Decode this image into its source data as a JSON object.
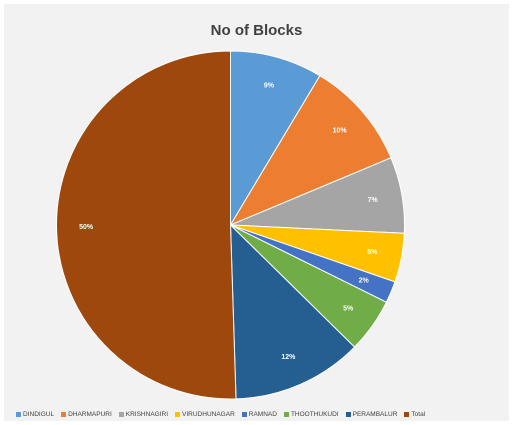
{
  "chart_data": {
    "type": "pie",
    "title": "No of Blocks",
    "categories": [
      "DINDIGUL",
      "DHARMAPURI",
      "KRISHNAGIRI",
      "VIRUDHUNAGAR",
      "RAMNAD",
      "THOOTHUKUDI",
      "PERAMBALUR",
      "Total"
    ],
    "values": [
      8.5,
      10,
      7,
      4.5,
      2,
      5,
      12,
      50
    ],
    "data_labels": [
      "9%",
      "10%",
      "7%",
      "5%",
      "2%",
      "5%",
      "12%",
      "50%"
    ],
    "colors": [
      "#5b9bd5",
      "#ed7d31",
      "#a5a5a5",
      "#ffc000",
      "#4472c4",
      "#70ad47",
      "#255e91",
      "#9e480e"
    ],
    "legend_position": "bottom",
    "start_angle": "12 o'clock",
    "direction": "clockwise"
  }
}
